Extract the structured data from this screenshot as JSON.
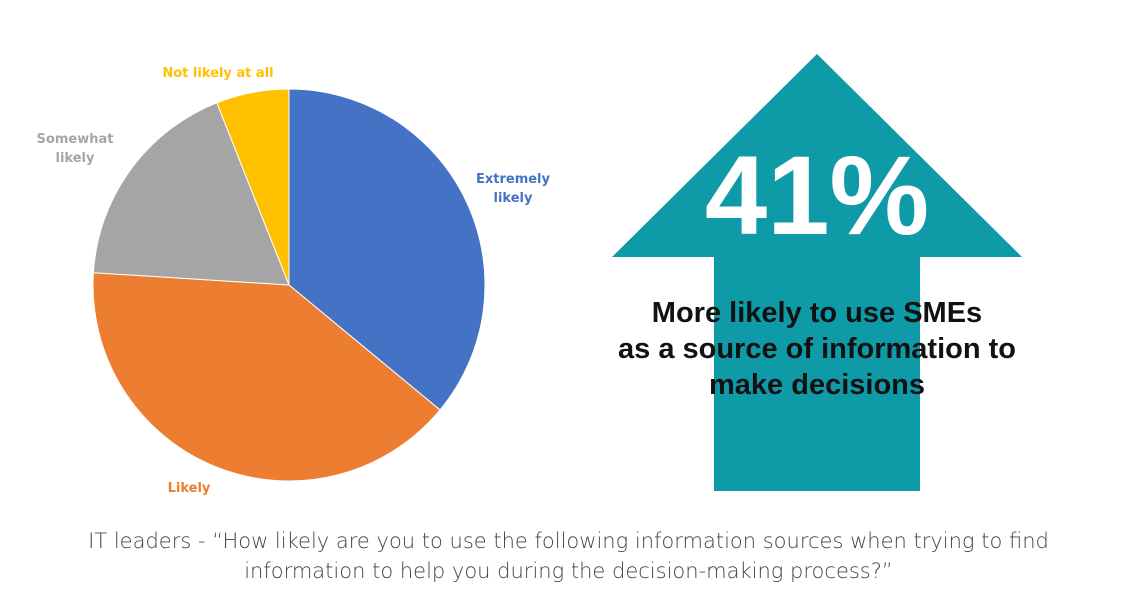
{
  "chart_data": {
    "type": "pie",
    "categories": [
      "Extremely likely",
      "Likely",
      "Somewhat likely",
      "Not likely at all"
    ],
    "values": [
      36,
      40,
      18,
      6
    ],
    "colors": [
      "#4472C4",
      "#ED7D31",
      "#A5A5A5",
      "#FFC000"
    ],
    "label_lines": [
      [
        "Extremely",
        "likely"
      ],
      [
        "Likely"
      ],
      [
        "Somewhat",
        "likely"
      ],
      [
        "Not likely at all"
      ]
    ],
    "legend": "none"
  },
  "stat": {
    "value": "41%",
    "caption_lines": [
      "More likely to use SMEs",
      "as a source of information to",
      "make decisions"
    ],
    "arrow_color": "#0E9AA7"
  },
  "footer": {
    "question_lines": [
      "IT leaders - “How likely are you to use the following information sources when trying to find",
      "information to help you during the decision-making process?”"
    ]
  }
}
